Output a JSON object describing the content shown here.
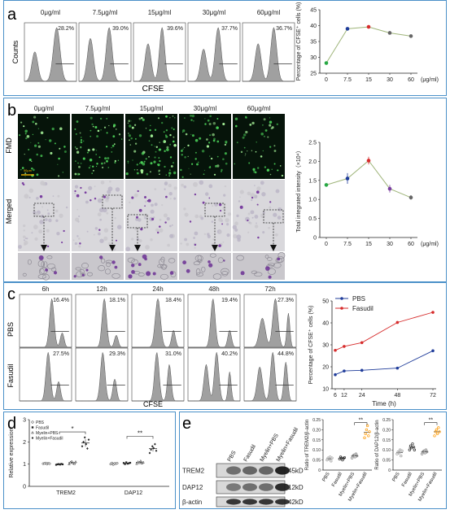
{
  "colors": {
    "border": "#4a90c8",
    "hist_fill": "#a0a0a0",
    "green": "#27a844",
    "blue": "#1f3c9a",
    "red": "#d62b2b",
    "line_tan": "#c8b98a",
    "dose_line": "#9fb57a",
    "orange": "#ff9900"
  },
  "panel_a": {
    "letter": "a",
    "doses": [
      "0μg/ml",
      "7.5μg/ml",
      "15μg/ml",
      "30μg/ml",
      "60μg/ml"
    ],
    "percents": [
      "28.2%",
      "39.0%",
      "39.6%",
      "37.7%",
      "36.7%"
    ],
    "ylabel": "Counts",
    "xlabel": "CFSE",
    "chart_data": {
      "type": "line",
      "x_ticks": [
        "0",
        "7.5",
        "15",
        "30",
        "60"
      ],
      "x_unit": "(μg/ml)",
      "values": [
        28.2,
        39.0,
        39.6,
        37.7,
        36.7
      ],
      "errors": [
        0.3,
        0.4,
        0.4,
        0.3,
        0.5
      ],
      "point_colors": [
        "#27a844",
        "#1f3c9a",
        "#d62b2b",
        "#666666",
        "#666666"
      ],
      "ylabel": "Percentage of CFSE⁺ cells (%)",
      "ylim": [
        25,
        45
      ],
      "y_ticks": [
        "25",
        "30",
        "35",
        "40",
        "45"
      ]
    }
  },
  "panel_b": {
    "letter": "b",
    "doses": [
      "0μg/ml",
      "7.5μg/ml",
      "15μg/ml",
      "30μg/ml",
      "60μg/ml"
    ],
    "row_labels": [
      "FMD",
      "Merged"
    ],
    "scale_label": "50μm",
    "chart_data": {
      "type": "line",
      "x_ticks": [
        "0",
        "7.5",
        "15",
        "30",
        "60"
      ],
      "x_unit": "(μg/ml)",
      "values": [
        1.38,
        1.55,
        2.02,
        1.28,
        1.05
      ],
      "errors": [
        0.04,
        0.14,
        0.1,
        0.1,
        0.06
      ],
      "point_colors": [
        "#27a844",
        "#1f3c9a",
        "#d62b2b",
        "#7a3fa0",
        "#666666"
      ],
      "ylabel": "Total integrated intensity（×10⁴）",
      "ylim": [
        0,
        2.5
      ],
      "y_ticks": [
        "0",
        "0.5",
        "1.0",
        "1.5",
        "2.0",
        "2.5"
      ]
    }
  },
  "panel_c": {
    "letter": "c",
    "times": [
      "6h",
      "12h",
      "24h",
      "48h",
      "72h"
    ],
    "row_labels": [
      "PBS",
      "Fasudil"
    ],
    "pbs_percents": [
      "16.4%",
      "18.1%",
      "18.4%",
      "19.4%",
      "27.3%"
    ],
    "fasudil_percents": [
      "27.5%",
      "29.3%",
      "31.0%",
      "40.2%",
      "44.8%"
    ],
    "xlabel": "CFSE",
    "chart_data": {
      "type": "line",
      "x": [
        6,
        12,
        24,
        48,
        72
      ],
      "x_ticks": [
        "6",
        "12",
        "24",
        "48",
        "72"
      ],
      "series": [
        {
          "name": "PBS",
          "values": [
            16.4,
            18.1,
            18.4,
            19.4,
            27.3
          ],
          "color": "#1f3c9a"
        },
        {
          "name": "Fasudil",
          "values": [
            27.5,
            29.3,
            31.0,
            40.2,
            44.8
          ],
          "color": "#d62b2b"
        }
      ],
      "xlabel": "Time (h)",
      "ylabel": "Percentage of CFSE⁺ cells (%)",
      "ylim": [
        10,
        50
      ],
      "y_ticks": [
        "10",
        "20",
        "30",
        "40",
        "50"
      ]
    }
  },
  "panel_d": {
    "letter": "d",
    "chart_data": {
      "type": "scatter",
      "categories": [
        "TREM2",
        "DAP12"
      ],
      "series": [
        {
          "name": "PBS",
          "values": [
            [
              1.02,
              1.03,
              1.05,
              1.0,
              1.04,
              1.02
            ],
            [
              1.0,
              1.05,
              0.98,
              1.03,
              1.02,
              1.04
            ]
          ]
        },
        {
          "name": "Fasudil",
          "values": [
            [
              0.97,
              0.99,
              1.0,
              0.98,
              1.01,
              0.99
            ],
            [
              1.05,
              1.0,
              1.08,
              1.02,
              1.04,
              1.06
            ]
          ]
        },
        {
          "name": "Myelin+PBS",
          "values": [
            [
              1.0,
              1.08,
              1.12,
              1.05,
              1.02,
              1.1
            ],
            [
              1.02,
              1.1,
              1.06,
              1.14,
              1.04,
              1.08
            ]
          ]
        },
        {
          "name": "Myelin+Fasudil",
          "values": [
            [
              1.8,
              2.0,
              2.2,
              1.9,
              1.7,
              2.1
            ],
            [
              1.5,
              1.65,
              1.8,
              1.72,
              1.9,
              1.6
            ]
          ]
        }
      ],
      "ylabel": "Relative expression",
      "ylim": [
        0,
        3
      ],
      "y_ticks": [
        "0",
        "1",
        "2",
        "3"
      ],
      "significance": [
        "*",
        "**"
      ]
    }
  },
  "panel_e": {
    "letter": "e",
    "lanes": [
      "PBS",
      "Fasudil",
      "Myelin+PBS",
      "Myelin+Fasudil"
    ],
    "proteins": [
      "TREM2",
      "DAP12",
      "β-actin"
    ],
    "sizes": [
      "45kD",
      "12kD",
      "42kD"
    ],
    "chart_data": [
      {
        "type": "scatter",
        "categories": [
          "PBS",
          "Fasudil",
          "Myelin+PBS",
          "Myelin+Fasudil"
        ],
        "values": [
          [
            0.05,
            0.06,
            0.055,
            0.065,
            0.045,
            0.06
          ],
          [
            0.055,
            0.065,
            0.06,
            0.05,
            0.058,
            0.062
          ],
          [
            0.06,
            0.07,
            0.075,
            0.065,
            0.08,
            0.07
          ],
          [
            0.16,
            0.18,
            0.2,
            0.22,
            0.17,
            0.19
          ]
        ],
        "colors": [
          "#999999",
          "#222222",
          "#777777",
          "#ff9900"
        ],
        "ylabel": "Ratio of TREM2/β-actin",
        "ylim": [
          0,
          0.25
        ],
        "y_ticks": [
          "0",
          "0.05",
          "0.10",
          "0.15",
          "0.20",
          "0.25"
        ],
        "significance": "**"
      },
      {
        "type": "scatter",
        "categories": [
          "PBS",
          "Fasudil",
          "Myelin+PBS",
          "Myelin+Fasudil"
        ],
        "values": [
          [
            0.08,
            0.09,
            0.085,
            0.1,
            0.07,
            0.095
          ],
          [
            0.1,
            0.12,
            0.11,
            0.13,
            0.115,
            0.1
          ],
          [
            0.08,
            0.09,
            0.095,
            0.085,
            0.1,
            0.09
          ],
          [
            0.17,
            0.19,
            0.2,
            0.18,
            0.21,
            0.19
          ]
        ],
        "colors": [
          "#999999",
          "#222222",
          "#777777",
          "#ff9900"
        ],
        "ylabel": "Ratio of DAP12/β-actin",
        "ylim": [
          0,
          0.25
        ],
        "y_ticks": [
          "0",
          "0.05",
          "0.10",
          "0.15",
          "0.20",
          "0.25"
        ],
        "significance": "**"
      }
    ]
  }
}
